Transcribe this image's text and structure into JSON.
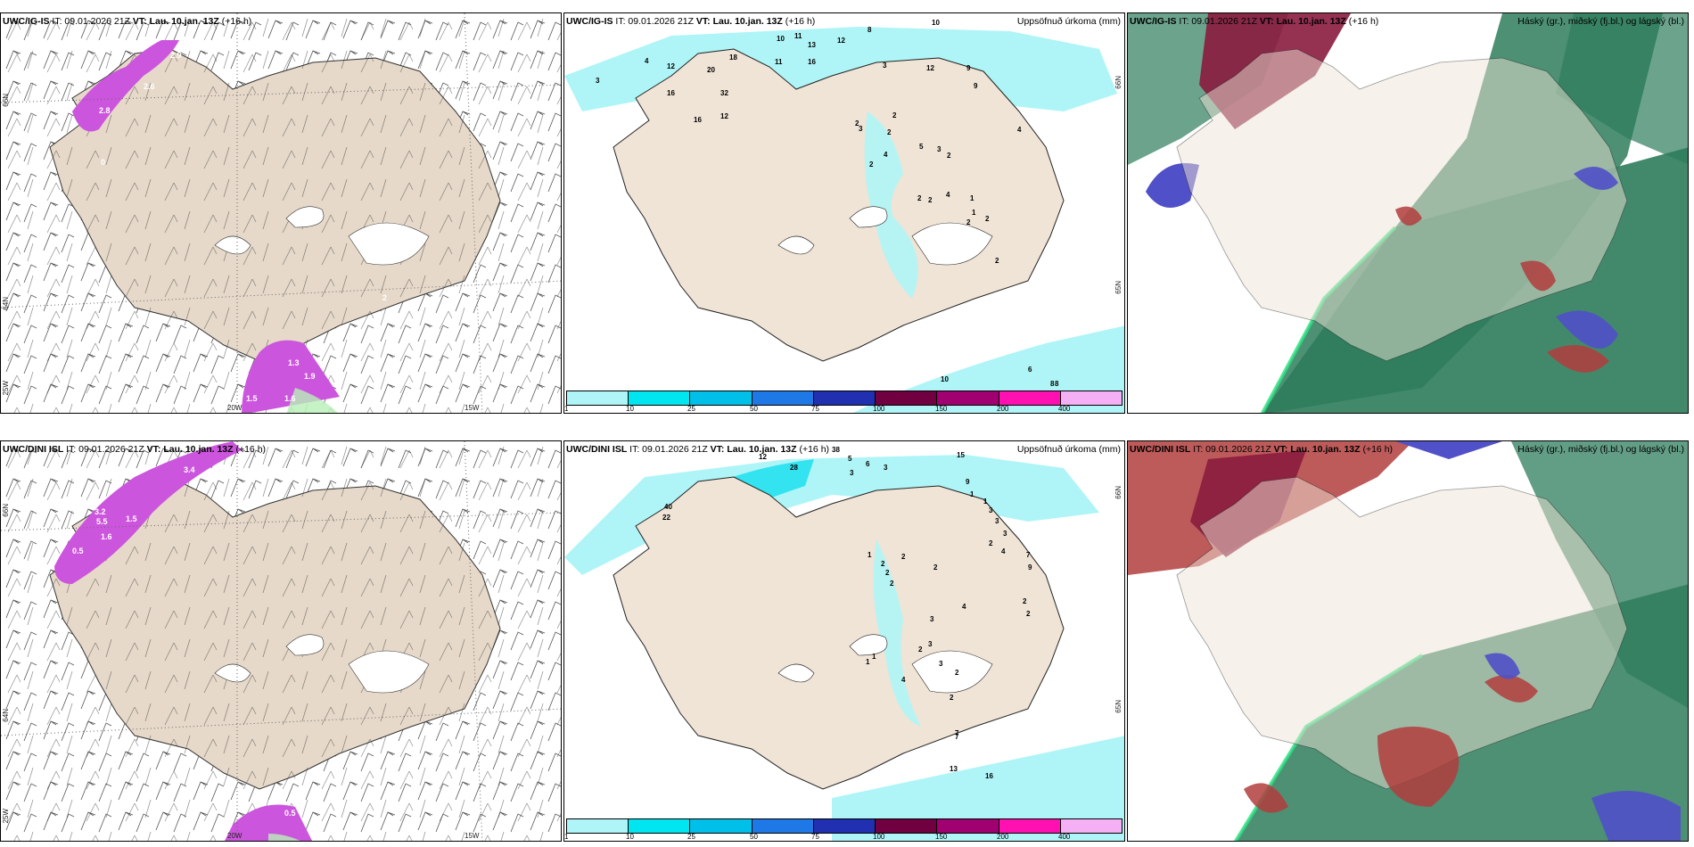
{
  "colors": {
    "land": "#efe4d6",
    "land_wind": "#e6d9c9",
    "sea": "#ffffff",
    "precip_light": "#aff5f7",
    "precip_mid": "#33e3f0",
    "wind_purple": "#cc55dd",
    "cloud_high": "#2e7c5c",
    "cloud_mid": "#b23d3d",
    "cloud_low": "#5050c8"
  },
  "colorbar": {
    "colors": [
      "#aff5f7",
      "#00e6f0",
      "#00c0ea",
      "#1e78e6",
      "#2030b0",
      "#700040",
      "#a00070",
      "#ff10b0",
      "#f5b0f5"
    ],
    "ticks": [
      "1",
      "10",
      "25",
      "50",
      "75",
      "100",
      "150",
      "200",
      "400"
    ]
  },
  "rows": [
    {
      "model": "UWC/IG-IS",
      "it": "IT: 09.01.2026 21Z",
      "vt_label": "VT:",
      "vt_value": "Lau. 10.jan. 13Z",
      "lead": "(+16 h)",
      "wind_values": [
        "2.9",
        "2.8",
        "2.6",
        "0",
        "1.3",
        "1.9",
        "1.5",
        "1.6",
        "2"
      ],
      "precip_values": [
        "3",
        "4",
        "12",
        "16",
        "18",
        "20",
        "32",
        "16",
        "12",
        "10",
        "11",
        "13",
        "12",
        "11",
        "16",
        "8",
        "3",
        "10",
        "12",
        "9",
        "9",
        "2",
        "3",
        "2",
        "2",
        "4",
        "2",
        "5",
        "3",
        "2",
        "2",
        "2",
        "4",
        "1",
        "1",
        "2",
        "2",
        "4",
        "2",
        "10",
        "6",
        "8",
        "8"
      ],
      "lat_labels": [
        "66N",
        "65N",
        "64N"
      ],
      "lon_labels": [
        "25W",
        "20W",
        "15W"
      ]
    },
    {
      "model": "UWC/DINI ISL",
      "it": "IT: 09.01.2026 21Z",
      "vt_label": "VT:",
      "vt_value": "Lau. 10.jan. 13Z",
      "lead": "(+16 h)",
      "wind_values": [
        "3.4",
        "3.2",
        "5.5",
        "1.5",
        "1.6",
        "0.5",
        "0.5"
      ],
      "precip_values": [
        "12",
        "28",
        "38",
        "5",
        "6",
        "3",
        "3",
        "15",
        "9",
        "1",
        "1",
        "3",
        "3",
        "3",
        "4",
        "2",
        "2",
        "22",
        "40",
        "1",
        "2",
        "2",
        "2",
        "2",
        "7",
        "9",
        "2",
        "2",
        "4",
        "3",
        "3",
        "2",
        "1",
        "1",
        "4",
        "3",
        "2",
        "2",
        "7",
        "7",
        "13",
        "16"
      ],
      "lat_labels": [
        "66N",
        "65N",
        "64N"
      ],
      "lon_labels": [
        "25W",
        "20W",
        "15W"
      ]
    }
  ],
  "precip_title": "Uppsöfnuð úrkoma (mm)",
  "cloud_title": "Háský (gr.), miðský (fj.bl.) og lágský (bl.)"
}
